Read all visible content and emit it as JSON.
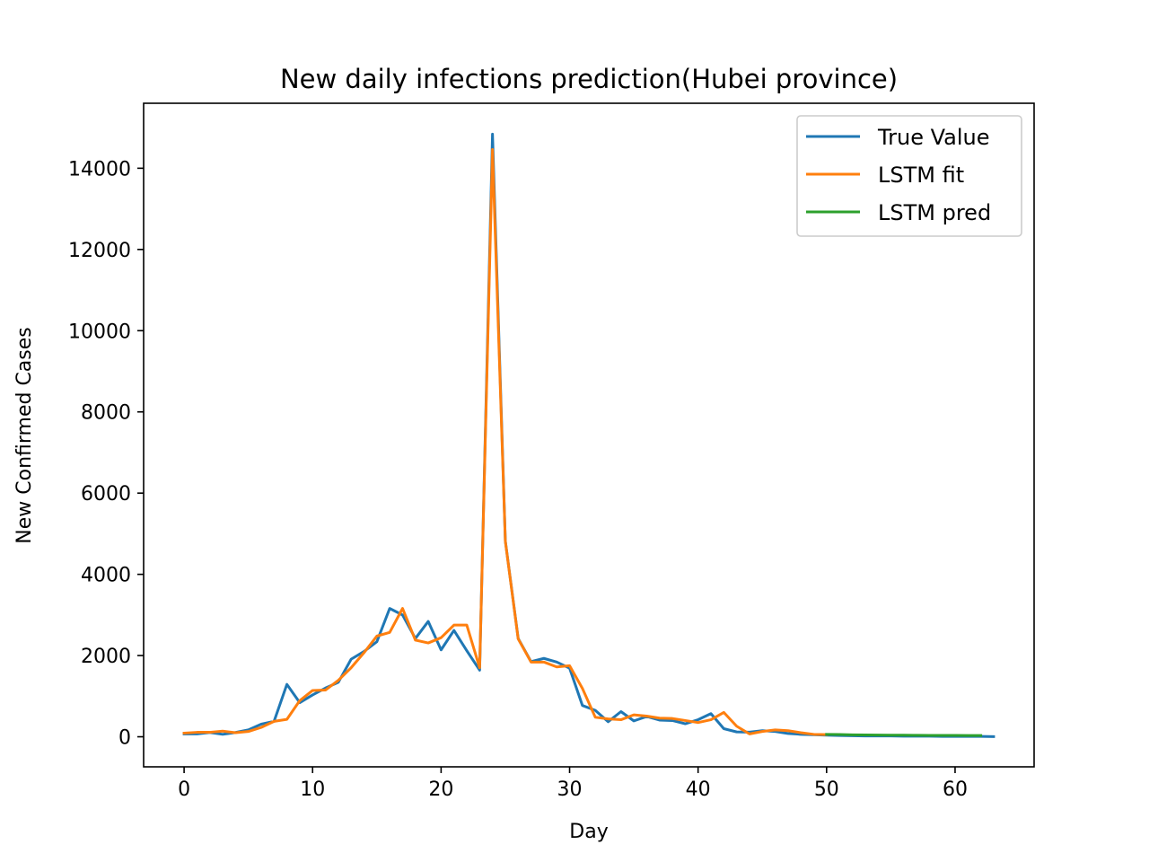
{
  "chart_data": {
    "type": "line",
    "title": "New daily infections prediction(Hubei province)",
    "xlabel": "Day",
    "ylabel": "New Confirmed Cases",
    "xlim": [
      -3.15,
      66.15
    ],
    "ylim": [
      -740,
      15600
    ],
    "xticks": [
      0,
      10,
      20,
      30,
      40,
      50,
      60
    ],
    "yticks": [
      0,
      2000,
      4000,
      6000,
      8000,
      10000,
      12000,
      14000
    ],
    "grid": false,
    "legend_position": "top-right",
    "series": [
      {
        "name": "True Value",
        "color": "#1f77b4",
        "x": [
          0,
          1,
          2,
          3,
          4,
          5,
          6,
          7,
          8,
          9,
          10,
          11,
          12,
          13,
          14,
          15,
          16,
          17,
          18,
          19,
          20,
          21,
          22,
          23,
          24,
          25,
          26,
          27,
          28,
          29,
          30,
          31,
          32,
          33,
          34,
          35,
          36,
          37,
          38,
          39,
          40,
          41,
          42,
          43,
          44,
          45,
          46,
          47,
          48,
          49,
          50,
          51,
          52,
          53,
          54,
          55,
          56,
          57,
          58,
          59,
          60,
          61,
          62,
          63
        ],
        "values": [
          70,
          70,
          105,
          60,
          105,
          170,
          310,
          380,
          1290,
          840,
          1030,
          1200,
          1340,
          1910,
          2100,
          2340,
          3160,
          3000,
          2420,
          2840,
          2140,
          2620,
          2120,
          1640,
          14840,
          4820,
          2420,
          1850,
          1930,
          1840,
          1690,
          770,
          650,
          370,
          620,
          390,
          500,
          410,
          400,
          320,
          420,
          570,
          200,
          120,
          115,
          150,
          130,
          80,
          60,
          50,
          40,
          30,
          25,
          20,
          20,
          20,
          15,
          15,
          15,
          10,
          10,
          10,
          10,
          5
        ]
      },
      {
        "name": "LSTM fit",
        "color": "#ff7f0e",
        "x": [
          0,
          1,
          2,
          3,
          4,
          5,
          6,
          7,
          8,
          9,
          10,
          11,
          12,
          13,
          14,
          15,
          16,
          17,
          18,
          19,
          20,
          21,
          22,
          23,
          24,
          25,
          26,
          27,
          28,
          29,
          30,
          31,
          32,
          33,
          34,
          35,
          36,
          37,
          38,
          39,
          40,
          41,
          42,
          43,
          44,
          45,
          46,
          47,
          48,
          49,
          50
        ],
        "values": [
          90,
          110,
          110,
          140,
          100,
          130,
          230,
          380,
          430,
          890,
          1140,
          1150,
          1390,
          1700,
          2070,
          2480,
          2570,
          3160,
          2380,
          2310,
          2440,
          2750,
          2750,
          1700,
          14460,
          4810,
          2410,
          1840,
          1840,
          1720,
          1750,
          1190,
          480,
          440,
          420,
          540,
          510,
          460,
          450,
          400,
          350,
          420,
          600,
          260,
          70,
          130,
          170,
          150,
          100,
          60,
          55
        ]
      },
      {
        "name": "LSTM pred",
        "color": "#2ca02c",
        "x": [
          50,
          51,
          52,
          53,
          54,
          55,
          56,
          57,
          58,
          59,
          60,
          61,
          62
        ],
        "values": [
          60,
          55,
          48,
          44,
          42,
          40,
          38,
          36,
          35,
          34,
          33,
          32,
          32
        ]
      }
    ]
  }
}
